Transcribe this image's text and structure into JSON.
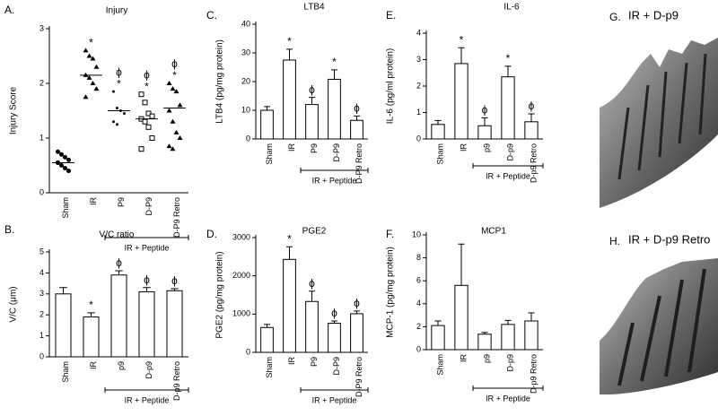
{
  "chart_data": [
    {
      "type": "dotplot",
      "panel": "A.",
      "title": "Injury",
      "ylabel": "Injury Score",
      "categories": [
        "Sham",
        "IR",
        "P9",
        "D-P9",
        "D-P9 Retro"
      ],
      "values": [
        0.55,
        2.15,
        1.5,
        1.35,
        1.55
      ],
      "points": [
        [
          0.75,
          0.7,
          0.65,
          0.6,
          0.55,
          0.5,
          0.45,
          0.4,
          0.55
        ],
        [
          2.6,
          2.5,
          2.45,
          2.3,
          2.15,
          2.1,
          2.0,
          1.9,
          1.75
        ],
        [
          1.85,
          1.55,
          1.5,
          1.45,
          1.3,
          1.25
        ],
        [
          1.8,
          1.65,
          1.45,
          1.4,
          1.35,
          1.3,
          1.2,
          1.0,
          0.8
        ],
        [
          2.0,
          1.9,
          1.85,
          1.6,
          1.5,
          1.3,
          1.1,
          1.0,
          0.85,
          0.8
        ]
      ],
      "markers": [
        "circle",
        "triangle",
        "dot",
        "square",
        "triangle"
      ],
      "significance": [
        null,
        [
          "*"
        ],
        [
          "ϕ",
          "*"
        ],
        [
          "ϕ",
          "*"
        ],
        [
          "ϕ",
          "*"
        ]
      ],
      "bracket": "IR + Peptide",
      "ylim": [
        0,
        3
      ],
      "yticks": [
        0,
        1,
        2,
        3
      ],
      "color": "#000000"
    },
    {
      "type": "bar",
      "panel": "B.",
      "title": "V/C ratio",
      "ylabel": "V/C (μm)",
      "categories": [
        "Sham",
        "IR",
        "p9",
        "D-p9",
        "D-p9 Retro"
      ],
      "values": [
        3.0,
        1.9,
        3.9,
        3.1,
        3.15
      ],
      "errors": [
        0.3,
        0.2,
        0.2,
        0.2,
        0.1
      ],
      "significance": [
        null,
        [
          "*"
        ],
        [
          "ϕ"
        ],
        [
          "ϕ"
        ],
        [
          "ϕ"
        ]
      ],
      "bracket": "IR + Peptide",
      "ylim": [
        0,
        5
      ],
      "yticks": [
        0,
        1,
        2,
        3,
        4,
        5
      ],
      "color": "#ffffff"
    },
    {
      "type": "bar",
      "panel": "C.",
      "title": "LTB4",
      "ylabel": "LTB4 (pg/mg protein)",
      "categories": [
        "Sham",
        "IR",
        "P9",
        "D-P9",
        "D-P9 Retro"
      ],
      "values": [
        10,
        27.5,
        12,
        20.8,
        6.5
      ],
      "errors": [
        1.3,
        3.8,
        2.5,
        3.3,
        1.5
      ],
      "significance": [
        null,
        [
          "*"
        ],
        [
          "ϕ"
        ],
        [
          "*"
        ],
        [
          "ϕ"
        ]
      ],
      "bracket": "IR + Peptide",
      "ylim": [
        0,
        40
      ],
      "yticks": [
        0,
        10,
        20,
        30,
        40
      ],
      "color": "#ffffff"
    },
    {
      "type": "bar",
      "panel": "D.",
      "title": "PGE2",
      "ylabel": "PGE2 (pg/mg protein)",
      "categories": [
        "Sham",
        "IR",
        "P9",
        "D-P9",
        "D-P9 Retro"
      ],
      "values": [
        650,
        2430,
        1330,
        760,
        1010
      ],
      "errors": [
        80,
        330,
        270,
        60,
        70
      ],
      "significance": [
        null,
        [
          "*"
        ],
        [
          "ϕ"
        ],
        [
          "ϕ"
        ],
        [
          "ϕ"
        ]
      ],
      "bracket": "IR + Peptide",
      "ylim": [
        0,
        3000
      ],
      "yticks": [
        0,
        1000,
        2000,
        3000
      ],
      "color": "#ffffff"
    },
    {
      "type": "bar",
      "panel": "E.",
      "title": "IL-6",
      "ylabel": "IL-6 (pg/ml protein)",
      "categories": [
        "Sham",
        "IR",
        "p9",
        "D-p9",
        "D-p9 Retro"
      ],
      "values": [
        0.55,
        2.85,
        0.5,
        2.35,
        0.65
      ],
      "errors": [
        0.15,
        0.6,
        0.3,
        0.4,
        0.3
      ],
      "significance": [
        null,
        [
          "*"
        ],
        [
          "ϕ"
        ],
        [
          "*"
        ],
        [
          "ϕ"
        ]
      ],
      "bracket": "IR + Peptide",
      "ylim": [
        0,
        4
      ],
      "yticks": [
        0,
        1,
        2,
        3,
        4
      ],
      "color": "#ffffff"
    },
    {
      "type": "bar",
      "panel": "F.",
      "title": "MCP1",
      "ylabel": "MCP-1 (pg/mg protein)",
      "categories": [
        "Sham",
        "IR",
        "p9",
        "D-p9",
        "D-p9 Retro"
      ],
      "values": [
        2.1,
        5.6,
        1.35,
        2.2,
        2.5
      ],
      "errors": [
        0.4,
        3.6,
        0.15,
        0.35,
        0.7
      ],
      "significance": [
        null,
        null,
        null,
        null,
        null
      ],
      "bracket": "IR + Peptide",
      "ylim": [
        0,
        10
      ],
      "yticks": [
        0,
        2,
        4,
        6,
        8,
        10
      ],
      "color": "#ffffff"
    }
  ],
  "images": [
    {
      "panel": "G.",
      "caption": "IR + D-p9"
    },
    {
      "panel": "H.",
      "caption": "IR + D-p9 Retro"
    }
  ]
}
